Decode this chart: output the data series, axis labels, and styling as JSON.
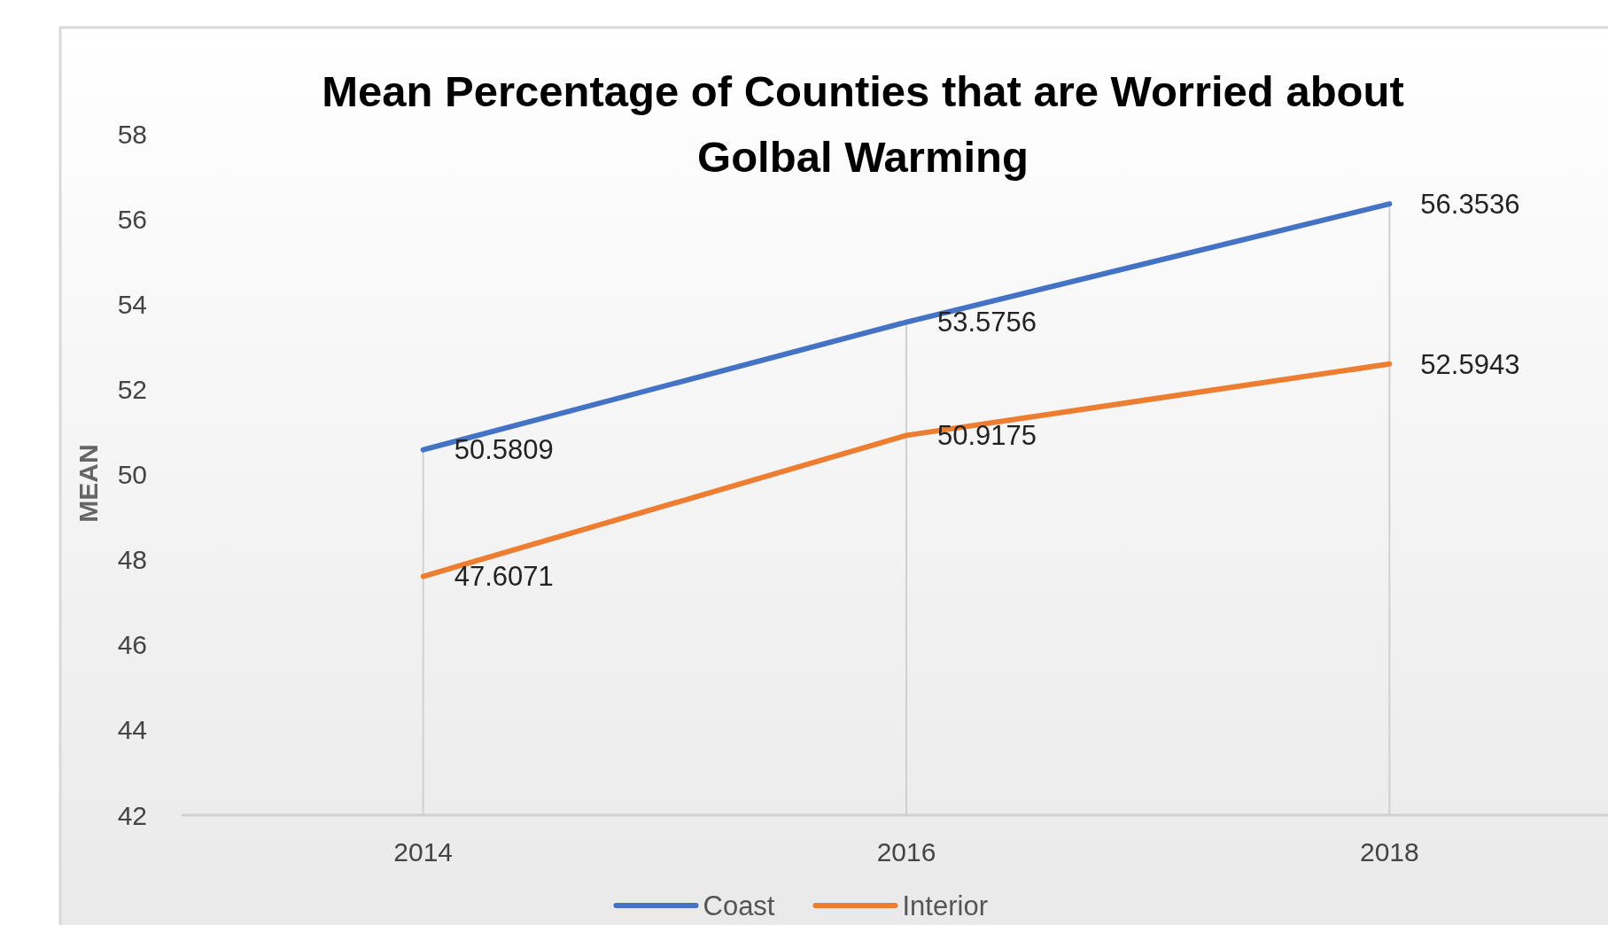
{
  "chart_data": {
    "type": "line",
    "title": "Mean Percentage of Counties that are Worried about Golbal Warming",
    "ylabel": "MEAN",
    "categories": [
      "2014",
      "2016",
      "2018"
    ],
    "series": [
      {
        "name": "Coast",
        "color": "#4472c4",
        "values": [
          50.5809,
          53.5756,
          56.3536
        ]
      },
      {
        "name": "Interior",
        "color": "#ed7d31",
        "values": [
          47.6071,
          50.9175,
          52.5943
        ]
      }
    ],
    "ylim": [
      42,
      58
    ],
    "yticks": [
      42,
      44,
      46,
      48,
      50,
      52,
      54,
      56,
      58
    ],
    "grid": "x",
    "legend": "bottom",
    "data_labels": true,
    "marker": "none",
    "line_style": "solid"
  }
}
